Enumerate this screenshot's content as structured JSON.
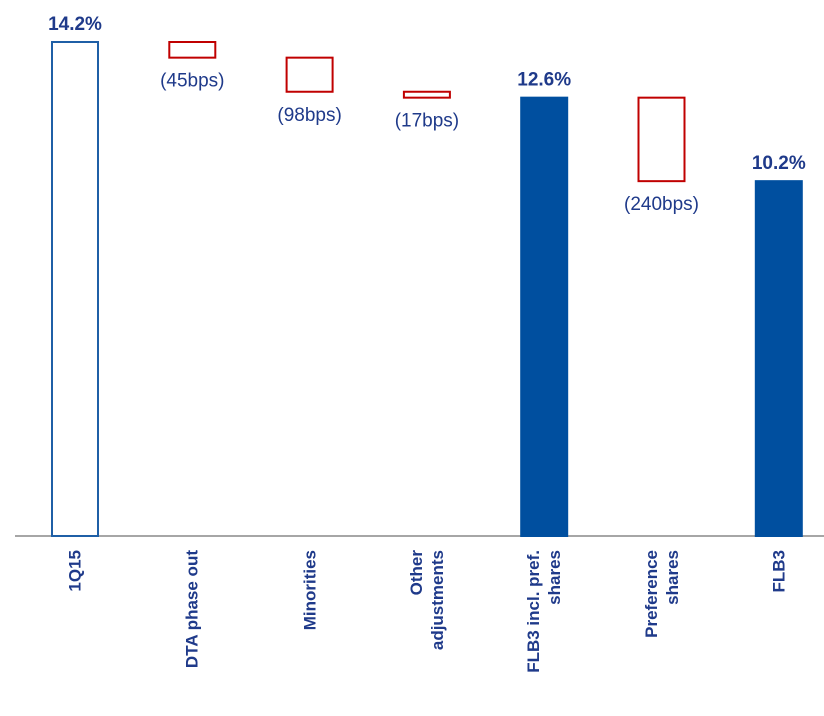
{
  "chart_data": {
    "type": "waterfall",
    "categories": [
      "1Q15",
      "DTA phase out",
      "Minorities",
      "Other\nadjustments",
      "FLB3 incl. pref.\nshares",
      "Preference\nshares",
      "FLB3"
    ],
    "values": [
      14.2,
      -0.45,
      -0.98,
      -0.17,
      12.6,
      -2.4,
      10.2
    ],
    "value_labels": [
      "14.2%",
      "(45bps)",
      "(98bps)",
      "(17bps)",
      "12.6%",
      "(240bps)",
      "10.2%"
    ],
    "fills": [
      "#ffffff",
      "#ffffff",
      "#ffffff",
      "#ffffff",
      "#004f9f",
      "#ffffff",
      "#004f9f"
    ],
    "edges": [
      "#1f5fa6",
      "#c00000",
      "#c00000",
      "#c00000",
      "#004f9f",
      "#c00000",
      "#004f9f"
    ],
    "ylim": [
      0,
      14.2
    ]
  }
}
